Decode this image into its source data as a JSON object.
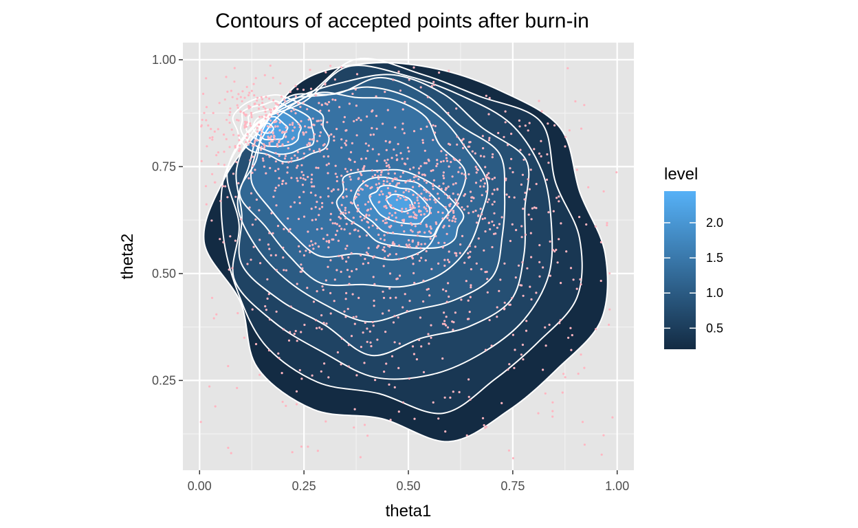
{
  "chart_data": {
    "type": "contour",
    "title": "Contours of accepted points after burn-in",
    "xlabel": "theta1",
    "ylabel": "theta2",
    "xlim": [
      -0.04,
      1.04
    ],
    "ylim": [
      0.04,
      1.04
    ],
    "x_ticks": [
      0.0,
      0.25,
      0.5,
      0.75,
      1.0
    ],
    "x_tick_labels": [
      "0.00",
      "0.25",
      "0.50",
      "0.75",
      "1.00"
    ],
    "y_ticks": [
      0.25,
      0.5,
      0.75,
      1.0
    ],
    "y_tick_labels": [
      "0.25",
      "0.50",
      "0.75",
      "1.00"
    ],
    "grid": true,
    "legend": {
      "title": "level",
      "position": "right",
      "ticks": [
        0.5,
        1.0,
        1.5,
        2.0
      ],
      "tick_labels": [
        "0.5",
        "1.0",
        "1.5",
        "2.0"
      ],
      "range": [
        0.2,
        2.45
      ],
      "colors": [
        "#132B43",
        "#56B1F7"
      ]
    },
    "density_peaks": [
      {
        "x": 0.16,
        "y": 0.84,
        "level": 2.4
      },
      {
        "x": 0.48,
        "y": 0.67,
        "level": 2.2
      }
    ],
    "contour_levels": [
      0.2,
      0.4,
      0.6,
      0.8,
      1.0,
      1.2,
      1.4,
      1.6,
      1.8,
      2.0,
      2.2,
      2.4
    ],
    "point_color": "#FFB6C1",
    "contour_line_color": "#ffffff",
    "panel_background": "#E5E5E5"
  }
}
